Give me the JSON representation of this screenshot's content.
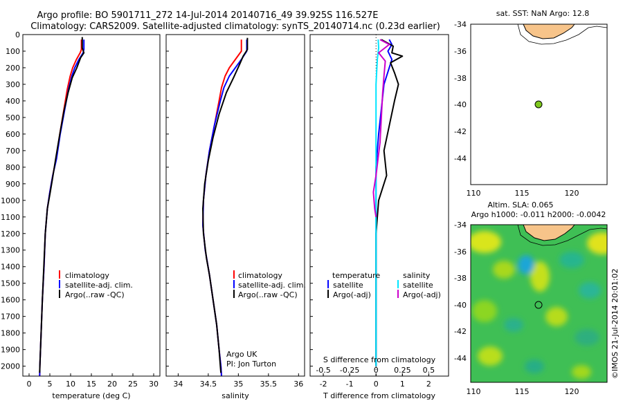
{
  "title": {
    "line1": "Argo profile: BO 5901711_272 14-Jul-2014 20140716_49 39.925S 116.527E",
    "line2": "Climatology: CARS2009. Satellite-adjusted climatology: synTS_20140714.nc (0.23d earlier)"
  },
  "colors": {
    "climatology": "#ff0000",
    "satellite": "#0000ff",
    "argo": "#000000",
    "t_satellite": "#0000ff",
    "t_argo": "#000000",
    "s_satellite": "#00e5ff",
    "s_argo": "#cc00cc",
    "land": "#f7c48a"
  },
  "depth_axis": {
    "ylim": [
      0,
      2060
    ],
    "ticks": [
      0,
      100,
      200,
      300,
      400,
      500,
      600,
      700,
      800,
      900,
      1000,
      1100,
      1200,
      1300,
      1400,
      1500,
      1600,
      1700,
      1800,
      1900,
      2000
    ]
  },
  "panels": {
    "temperature": {
      "xlabel": "temperature (deg C)",
      "xlim": [
        -1.5,
        31.5
      ],
      "xticks": [
        0,
        5,
        10,
        15,
        20,
        25,
        30
      ],
      "legend": [
        "climatology",
        "satellite-adj. clim.",
        "Argo(..raw -QC)"
      ]
    },
    "salinity": {
      "xlabel": "salinity",
      "xlim": [
        33.8,
        36.1
      ],
      "xticks": [
        "34",
        "34.5",
        "35",
        "35.5",
        "36"
      ],
      "legend": [
        "climatology",
        "satellite-adj. clim.",
        "Argo(..raw -QC)"
      ],
      "note1": "Argo UK",
      "note2": "PI: Jon Turton"
    },
    "difference": {
      "xlabel": "T difference from climatology",
      "top_label": "S difference from climatology",
      "xlim_T": [
        -2.5,
        2.75
      ],
      "xticks_T": [
        "-2",
        "-1",
        "0",
        "1",
        "2"
      ],
      "xlim_S": [
        -0.625,
        0.6875
      ],
      "xticks_S": [
        "-0.5",
        "-0.25",
        "0",
        "0.25",
        "0.5"
      ],
      "legend_t_title": "temperature",
      "legend_s_title": "salinity",
      "legend_t": [
        "satellite",
        "Argo(-adj)"
      ],
      "legend_s": [
        "satellite",
        "Argo(-adj)"
      ]
    }
  },
  "maps": {
    "sst": {
      "title": "sat. SST: NaN Argo: 12.8",
      "xticks": [
        "110",
        "115",
        "120"
      ],
      "yticks": [
        "-34",
        "-36",
        "-38",
        "-40",
        "-42",
        "-44"
      ],
      "float_lon": 116.527,
      "float_lat": -39.925
    },
    "sla": {
      "title1": "Altim. SLA: 0.065",
      "title2": "Argo h1000: -0.011 h2000: -0.0042",
      "xticks": [
        "110",
        "115",
        "120"
      ],
      "yticks": [
        "-34",
        "-36",
        "-38",
        "-40",
        "-42",
        "-44"
      ],
      "side_label": "©IMOS 21-Jul-2014 20:01:02"
    }
  },
  "chart_data": [
    {
      "type": "line",
      "title": "",
      "xlabel": "temperature (deg C)",
      "ylabel": "",
      "xlim": [
        -1.5,
        31.5
      ],
      "ylim": [
        0,
        2060
      ],
      "y_inverted": true,
      "series": [
        {
          "name": "climatology",
          "color": "#ff0000",
          "points": [
            [
              12.6,
              30
            ],
            [
              12.6,
              90
            ],
            [
              12.3,
              110
            ],
            [
              11.4,
              150
            ],
            [
              10.5,
              200
            ],
            [
              9.9,
              250
            ],
            [
              9.2,
              330
            ],
            [
              8.4,
              450
            ],
            [
              7.4,
              600
            ],
            [
              6.5,
              750
            ],
            [
              5.7,
              850
            ],
            [
              5.0,
              950
            ],
            [
              4.4,
              1050
            ],
            [
              3.9,
              1200
            ],
            [
              3.6,
              1400
            ],
            [
              3.2,
              1600
            ],
            [
              2.9,
              1800
            ],
            [
              2.6,
              2000
            ],
            [
              2.55,
              2060
            ]
          ]
        },
        {
          "name": "satellite-adj. clim.",
          "color": "#0000ff",
          "points": [
            [
              13.2,
              30
            ],
            [
              13.2,
              90
            ],
            [
              13.0,
              110
            ],
            [
              12.0,
              150
            ],
            [
              11.0,
              200
            ],
            [
              10.3,
              250
            ],
            [
              9.5,
              330
            ],
            [
              8.6,
              450
            ],
            [
              7.5,
              600
            ],
            [
              6.6,
              750
            ],
            [
              5.7,
              850
            ],
            [
              5.0,
              950
            ],
            [
              4.4,
              1050
            ],
            [
              3.9,
              1200
            ],
            [
              3.6,
              1400
            ],
            [
              3.2,
              1600
            ],
            [
              2.9,
              1800
            ],
            [
              2.6,
              2000
            ],
            [
              2.55,
              2060
            ]
          ]
        },
        {
          "name": "Argo(..raw -QC)",
          "color": "#000000",
          "points": [
            [
              12.8,
              15
            ],
            [
              12.8,
              80
            ],
            [
              13.2,
              110
            ],
            [
              12.4,
              140
            ],
            [
              11.5,
              200
            ],
            [
              10.4,
              260
            ],
            [
              9.4,
              350
            ],
            [
              8.4,
              460
            ],
            [
              7.4,
              600
            ],
            [
              6.4,
              750
            ],
            [
              5.7,
              860
            ],
            [
              5.1,
              950
            ],
            [
              4.4,
              1050
            ],
            [
              3.9,
              1200
            ],
            [
              3.55,
              1400
            ],
            [
              3.2,
              1600
            ],
            [
              2.9,
              1800
            ],
            [
              2.6,
              2000
            ],
            [
              2.55,
              2040
            ]
          ]
        }
      ]
    },
    {
      "type": "line",
      "title": "",
      "xlabel": "salinity",
      "ylabel": "",
      "xlim": [
        33.8,
        36.1
      ],
      "ylim": [
        0,
        2060
      ],
      "y_inverted": true,
      "series": [
        {
          "name": "climatology",
          "color": "#ff0000",
          "points": [
            [
              35.05,
              30
            ],
            [
              35.05,
              100
            ],
            [
              34.95,
              150
            ],
            [
              34.85,
              200
            ],
            [
              34.78,
              250
            ],
            [
              34.72,
              320
            ],
            [
              34.68,
              400
            ],
            [
              34.6,
              550
            ],
            [
              34.52,
              700
            ],
            [
              34.46,
              850
            ],
            [
              34.42,
              1000
            ],
            [
              34.41,
              1150
            ],
            [
              34.45,
              1300
            ],
            [
              34.52,
              1450
            ],
            [
              34.58,
              1600
            ],
            [
              34.64,
              1750
            ],
            [
              34.68,
              1900
            ],
            [
              34.71,
              2000
            ],
            [
              34.72,
              2060
            ]
          ]
        },
        {
          "name": "satellite-adj. clim.",
          "color": "#0000ff",
          "points": [
            [
              35.14,
              30
            ],
            [
              35.14,
              100
            ],
            [
              35.05,
              150
            ],
            [
              34.95,
              200
            ],
            [
              34.85,
              250
            ],
            [
              34.76,
              320
            ],
            [
              34.7,
              400
            ],
            [
              34.6,
              550
            ],
            [
              34.52,
              700
            ],
            [
              34.46,
              850
            ],
            [
              34.42,
              1000
            ],
            [
              34.41,
              1150
            ],
            [
              34.45,
              1300
            ],
            [
              34.52,
              1450
            ],
            [
              34.58,
              1600
            ],
            [
              34.64,
              1750
            ],
            [
              34.68,
              1900
            ],
            [
              34.71,
              2000
            ],
            [
              34.72,
              2060
            ]
          ]
        },
        {
          "name": "Argo(..raw -QC)",
          "color": "#000000",
          "points": [
            [
              35.15,
              20
            ],
            [
              35.15,
              90
            ],
            [
              35.08,
              130
            ],
            [
              35.02,
              180
            ],
            [
              34.92,
              260
            ],
            [
              34.8,
              350
            ],
            [
              34.68,
              480
            ],
            [
              34.58,
              620
            ],
            [
              34.5,
              760
            ],
            [
              34.44,
              900
            ],
            [
              34.41,
              1050
            ],
            [
              34.42,
              1200
            ],
            [
              34.47,
              1350
            ],
            [
              34.52,
              1450
            ],
            [
              34.58,
              1600
            ],
            [
              34.64,
              1750
            ],
            [
              34.68,
              1900
            ],
            [
              34.7,
              2000
            ],
            [
              34.71,
              2040
            ]
          ]
        }
      ]
    },
    {
      "type": "line",
      "title": "",
      "xlabel": "T difference from climatology",
      "ylabel": "",
      "xlim": [
        -2.5,
        2.75
      ],
      "ylim": [
        0,
        2060
      ],
      "y_inverted": true,
      "series": [
        {
          "name": "temperature satellite",
          "color": "#0000ff",
          "points": [
            [
              0.5,
              30
            ],
            [
              0.6,
              60
            ],
            [
              0.45,
              100
            ],
            [
              0.6,
              150
            ],
            [
              0.5,
              200
            ],
            [
              0.3,
              300
            ],
            [
              0.2,
              450
            ],
            [
              0.1,
              600
            ],
            [
              0.0,
              800
            ],
            [
              0.0,
              1000
            ],
            [
              0.0,
              1200
            ],
            [
              0.0,
              1500
            ],
            [
              0.0,
              1800
            ],
            [
              0.0,
              2000
            ]
          ]
        },
        {
          "name": "temperature Argo(-adj)",
          "color": "#000000",
          "points": [
            [
              0.2,
              30
            ],
            [
              0.65,
              70
            ],
            [
              0.6,
              110
            ],
            [
              1.0,
              130
            ],
            [
              0.55,
              170
            ],
            [
              0.7,
              230
            ],
            [
              0.85,
              300
            ],
            [
              0.7,
              400
            ],
            [
              0.5,
              550
            ],
            [
              0.3,
              700
            ],
            [
              0.4,
              850
            ],
            [
              0.1,
              1000
            ],
            [
              0.0,
              1200
            ],
            [
              0.0,
              1500
            ],
            [
              0.0,
              1800
            ],
            [
              0.0,
              2000
            ]
          ]
        },
        {
          "name": "salinity satellite",
          "color": "#00e5ff",
          "points": [
            [
              0.08,
              30
            ],
            [
              0.1,
              80
            ],
            [
              0.05,
              150
            ],
            [
              0.0,
              300
            ],
            [
              0.0,
              600
            ],
            [
              0.0,
              900
            ],
            [
              0.0,
              1200
            ],
            [
              0.0,
              1500
            ],
            [
              0.0,
              1800
            ],
            [
              0.0,
              2000
            ]
          ]
        },
        {
          "name": "salinity Argo(-adj)",
          "color": "#cc00cc",
          "points": [
            [
              0.15,
              30
            ],
            [
              0.5,
              60
            ],
            [
              0.1,
              110
            ],
            [
              0.35,
              160
            ],
            [
              0.3,
              250
            ],
            [
              0.25,
              350
            ],
            [
              0.2,
              500
            ],
            [
              0.15,
              650
            ],
            [
              0.0,
              850
            ],
            [
              -0.1,
              950
            ],
            [
              -0.05,
              1050
            ],
            [
              0.0,
              1100
            ]
          ]
        }
      ]
    }
  ]
}
